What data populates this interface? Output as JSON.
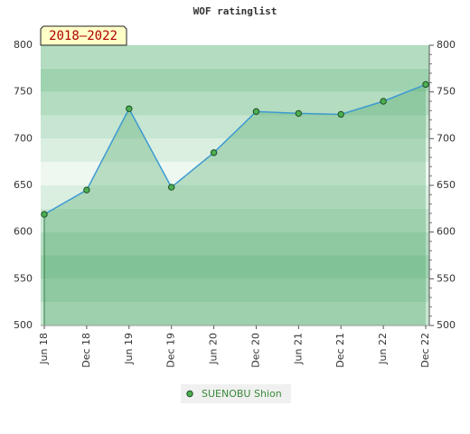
{
  "chart_data": {
    "type": "line",
    "title": "WOF ratinglist",
    "annotation": "2018–2022",
    "categories": [
      "Jun 18",
      "Dec 18",
      "Jun 19",
      "Dec 19",
      "Jun 20",
      "Dec 20",
      "Jun 21",
      "Dec 21",
      "Jun 22",
      "Dec 22"
    ],
    "series": [
      {
        "name": "SUENOBU Shion",
        "color": "#3d9ad1",
        "values": [
          619,
          645,
          732,
          648,
          685,
          729,
          727,
          726,
          740,
          758
        ]
      }
    ],
    "ylim": [
      500,
      800
    ],
    "yticks": [
      500,
      550,
      600,
      650,
      700,
      750,
      800
    ],
    "grid": true
  }
}
